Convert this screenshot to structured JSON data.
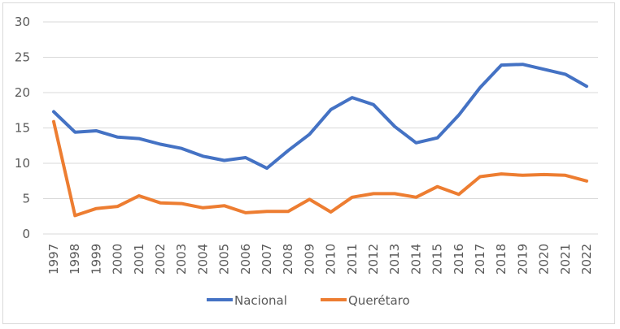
{
  "chart_data": {
    "type": "line",
    "title": "",
    "xlabel": "",
    "ylabel": "",
    "ylim": [
      0,
      30
    ],
    "yticks": [
      0,
      5,
      10,
      15,
      20,
      25,
      30
    ],
    "grid": true,
    "legend_position": "bottom",
    "categories": [
      "1997",
      "1998",
      "1999",
      "2000",
      "2001",
      "2002",
      "2003",
      "2004",
      "2005",
      "2006",
      "2007",
      "2008",
      "2009",
      "2010",
      "2011",
      "2012",
      "2013",
      "2014",
      "2015",
      "2016",
      "2017",
      "2018",
      "2019",
      "2020",
      "2021",
      "2022"
    ],
    "series": [
      {
        "name": "Nacional",
        "color": "#4472c4",
        "values": [
          17.3,
          14.4,
          14.6,
          13.7,
          13.5,
          12.7,
          12.1,
          11.0,
          10.4,
          10.8,
          9.3,
          11.8,
          14.1,
          17.6,
          19.3,
          18.3,
          15.2,
          12.9,
          13.6,
          16.8,
          20.7,
          23.9,
          24.0,
          23.3,
          22.6,
          20.9
        ]
      },
      {
        "name": "Querétaro",
        "color": "#ed7d31",
        "values": [
          15.9,
          2.6,
          3.6,
          3.9,
          5.4,
          4.4,
          4.3,
          3.7,
          4.0,
          3.0,
          3.2,
          3.2,
          4.9,
          3.1,
          5.2,
          5.7,
          5.7,
          5.2,
          6.7,
          5.6,
          8.1,
          8.5,
          8.3,
          8.4,
          8.3,
          7.5
        ]
      }
    ]
  }
}
